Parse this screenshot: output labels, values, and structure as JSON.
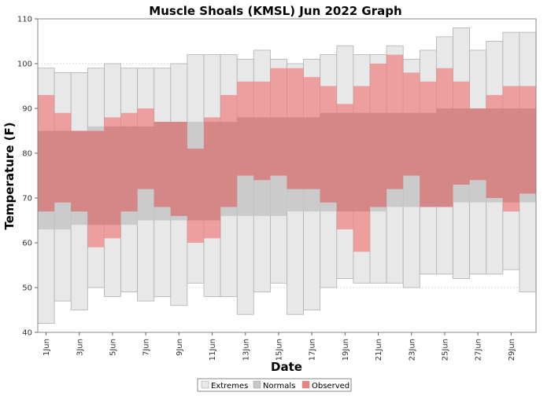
{
  "chart_data": {
    "type": "bar",
    "title": "Muscle Shoals (KMSL) Jun 2022 Graph",
    "xlabel": "Date",
    "ylabel": "Temperature (F)",
    "ylim": [
      40,
      110
    ],
    "yticks": [
      40,
      50,
      60,
      70,
      80,
      90,
      100,
      110
    ],
    "grid": true,
    "legend_position": "bottom-center",
    "x": [
      "1 Jun",
      "2 Jun",
      "3 Jun",
      "4 Jun",
      "5 Jun",
      "6 Jun",
      "7 Jun",
      "8 Jun",
      "9 Jun",
      "10 Jun",
      "11 Jun",
      "12 Jun",
      "13 Jun",
      "14 Jun",
      "15 Jun",
      "16 Jun",
      "17 Jun",
      "18 Jun",
      "19 Jun",
      "20 Jun",
      "21 Jun",
      "22 Jun",
      "23 Jun",
      "24 Jun",
      "25 Jun",
      "26 Jun",
      "27 Jun",
      "28 Jun",
      "29 Jun",
      "30 Jun"
    ],
    "x_tick_labels": [
      "1Jun",
      "3Jun",
      "5Jun",
      "7Jun",
      "9Jun",
      "11Jun",
      "13Jun",
      "15Jun",
      "17Jun",
      "19Jun",
      "21Jun",
      "23Jun",
      "25Jun",
      "27Jun",
      "29Jun"
    ],
    "series": [
      {
        "name": "Extremes",
        "color": "#e8e8e8",
        "low": [
          42,
          47,
          45,
          50,
          48,
          49,
          47,
          48,
          46,
          51,
          48,
          48,
          44,
          49,
          51,
          44,
          45,
          50,
          52,
          51,
          51,
          51,
          50,
          53,
          53,
          52,
          53,
          53,
          54,
          49
        ],
        "high": [
          99,
          98,
          98,
          99,
          100,
          99,
          99,
          99,
          100,
          102,
          102,
          102,
          101,
          103,
          101,
          100,
          101,
          102,
          104,
          102,
          102,
          104,
          101,
          103,
          106,
          108,
          103,
          105,
          107,
          107
        ]
      },
      {
        "name": "Normals",
        "color": "#c8c8c8",
        "low": [
          63,
          63,
          64,
          64,
          64,
          64,
          65,
          65,
          65,
          65,
          65,
          66,
          66,
          66,
          66,
          67,
          67,
          67,
          67,
          67,
          67,
          68,
          68,
          68,
          68,
          69,
          69,
          69,
          69,
          69
        ],
        "high": [
          85,
          85,
          85,
          86,
          86,
          86,
          86,
          87,
          87,
          87,
          87,
          87,
          88,
          88,
          88,
          88,
          88,
          89,
          89,
          89,
          89,
          89,
          89,
          89,
          90,
          90,
          90,
          90,
          90,
          90
        ]
      },
      {
        "name": "Observed",
        "color": "#f08080",
        "low": [
          67,
          69,
          67,
          59,
          61,
          67,
          72,
          68,
          66,
          60,
          61,
          68,
          75,
          74,
          75,
          72,
          72,
          69,
          63,
          58,
          68,
          72,
          75,
          68,
          68,
          73,
          74,
          70,
          67,
          71
        ],
        "high": [
          93,
          89,
          85,
          85,
          88,
          89,
          90,
          87,
          87,
          81,
          88,
          93,
          96,
          96,
          99,
          99,
          97,
          95,
          91,
          95,
          100,
          102,
          98,
          96,
          99,
          96,
          90,
          93,
          95,
          95
        ]
      }
    ]
  }
}
